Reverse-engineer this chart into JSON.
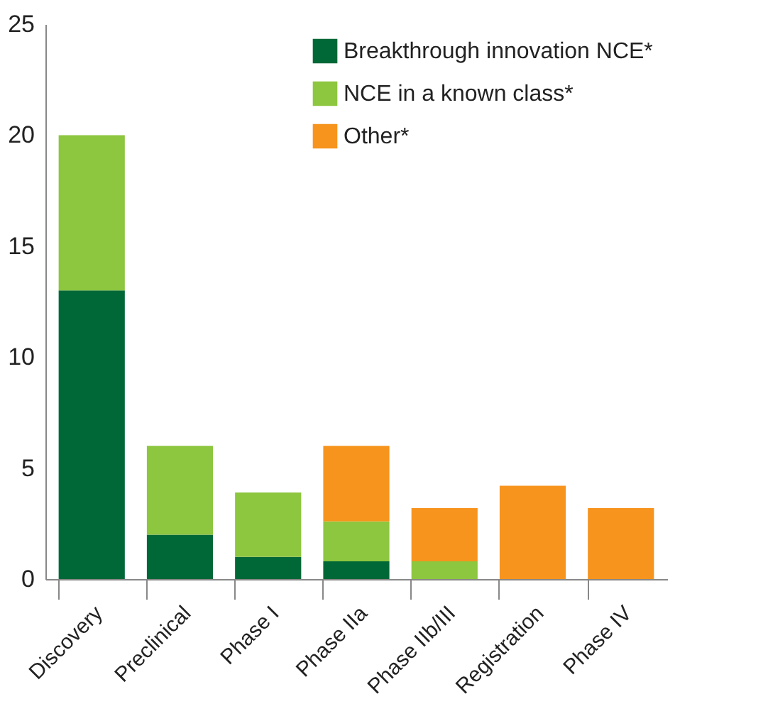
{
  "chart_data": {
    "type": "bar",
    "stacked": true,
    "categories": [
      "Discovery",
      "Preclinical",
      "Phase I",
      "Phase IIa",
      "Phase IIb/III",
      "Registration",
      "Phase IV"
    ],
    "series": [
      {
        "name": "Breakthrough innovation NCE*",
        "color": "#006837",
        "values": [
          13,
          2,
          1,
          0.8,
          0,
          0,
          0
        ]
      },
      {
        "name": "NCE in a known class*",
        "color": "#8dc63f",
        "values": [
          7,
          4,
          2.9,
          1.8,
          0.8,
          0,
          0
        ]
      },
      {
        "name": "Other*",
        "color": "#f7941d",
        "values": [
          0,
          0,
          0,
          3.4,
          2.4,
          4.2,
          3.2
        ]
      }
    ],
    "ylim": [
      0,
      25
    ],
    "yticks": [
      0,
      5,
      10,
      15,
      20,
      25
    ],
    "grid": false,
    "legend": "top right"
  }
}
